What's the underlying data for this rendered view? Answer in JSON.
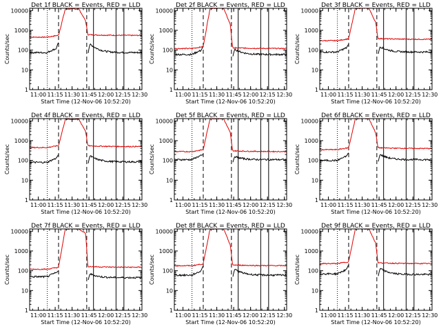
{
  "chart_data": {
    "type": "line",
    "layout": "3x3 grid",
    "xlabel": "Start Time (12-Nov-06 10:52:20)",
    "ylabel": "Counts/sec",
    "x_tick_labels": [
      "11:00",
      "11:15",
      "11:30",
      "11:45",
      "12:00",
      "12:15",
      "12:30"
    ],
    "y_tick_labels": [
      "1",
      "10",
      "100",
      "1000",
      "10000"
    ],
    "y_scale": "log",
    "ylim": [
      1,
      13000
    ],
    "xlim": [
      "10:52:20",
      "12:32:00"
    ],
    "series_colors": {
      "events": "#000000",
      "lld": "#dd0000"
    },
    "vertical_markers": [
      {
        "time": "11:08",
        "style": "dotted"
      },
      {
        "time": "11:18",
        "style": "dashed"
      },
      {
        "time": "11:43",
        "style": "dashed"
      },
      {
        "time": "11:49",
        "style": "solid"
      },
      {
        "time": "12:09",
        "style": "solid"
      },
      {
        "time": "12:16",
        "style": "solid"
      }
    ],
    "panels": [
      {
        "title": "Det 1f BLACK = Events, RED = LLD",
        "lld": {
          "pre": 450,
          "peak": 12000,
          "decay_start": 3000,
          "post": 550
        },
        "events": {
          "pre": 75,
          "pre_spike": 250,
          "post_spike": 200,
          "post": 75
        }
      },
      {
        "title": "Det 2f BLACK = Events, RED = LLD",
        "lld": {
          "pre": 120,
          "peak": 13000,
          "decay_start": 2000,
          "post": 120
        },
        "events": {
          "pre": 60,
          "pre_spike": 150,
          "post_spike": 110,
          "post": 60
        }
      },
      {
        "title": "Det 3f BLACK = Events, RED = LLD",
        "lld": {
          "pre": 300,
          "peak": 13000,
          "decay_start": 2500,
          "post": 350
        },
        "events": {
          "pre": 80,
          "pre_spike": 200,
          "post_spike": 150,
          "post": 80
        }
      },
      {
        "title": "Det 4f BLACK = Events, RED = LLD",
        "lld": {
          "pre": 450,
          "peak": 12000,
          "decay_start": 3000,
          "post": 500
        },
        "events": {
          "pre": 80,
          "pre_spike": 200,
          "post_spike": 170,
          "post": 85
        }
      },
      {
        "title": "Det 5f BLACK = Events, RED = LLD",
        "lld": {
          "pre": 280,
          "peak": 13000,
          "decay_start": 2500,
          "post": 280
        },
        "events": {
          "pre": 110,
          "pre_spike": 200,
          "post_spike": 160,
          "post": 110
        }
      },
      {
        "title": "Det 6f BLACK = Events, RED = LLD",
        "lld": {
          "pre": 350,
          "peak": 13000,
          "decay_start": 2500,
          "post": 400
        },
        "events": {
          "pre": 100,
          "pre_spike": 250,
          "post_spike": 200,
          "post": 110
        }
      },
      {
        "title": "Det 7f BLACK = Events, RED = LLD",
        "lld": {
          "pre": 120,
          "peak": 13000,
          "decay_start": 8000,
          "post": 150
        },
        "events": {
          "pre": 50,
          "pre_spike": 100,
          "post_spike": 70,
          "post": 45
        }
      },
      {
        "title": "Det 8f BLACK = Events, RED = LLD",
        "lld": {
          "pre": 180,
          "peak": 13000,
          "decay_start": 2000,
          "post": 180
        },
        "events": {
          "pre": 60,
          "pre_spike": 180,
          "post_spike": 120,
          "post": 60
        }
      },
      {
        "title": "Det 9f BLACK = Events, RED = LLD",
        "lld": {
          "pre": 230,
          "peak": 13000,
          "decay_start": 2500,
          "post": 230
        },
        "events": {
          "pre": 70,
          "pre_spike": 200,
          "post_spike": 130,
          "post": 65
        }
      }
    ]
  }
}
